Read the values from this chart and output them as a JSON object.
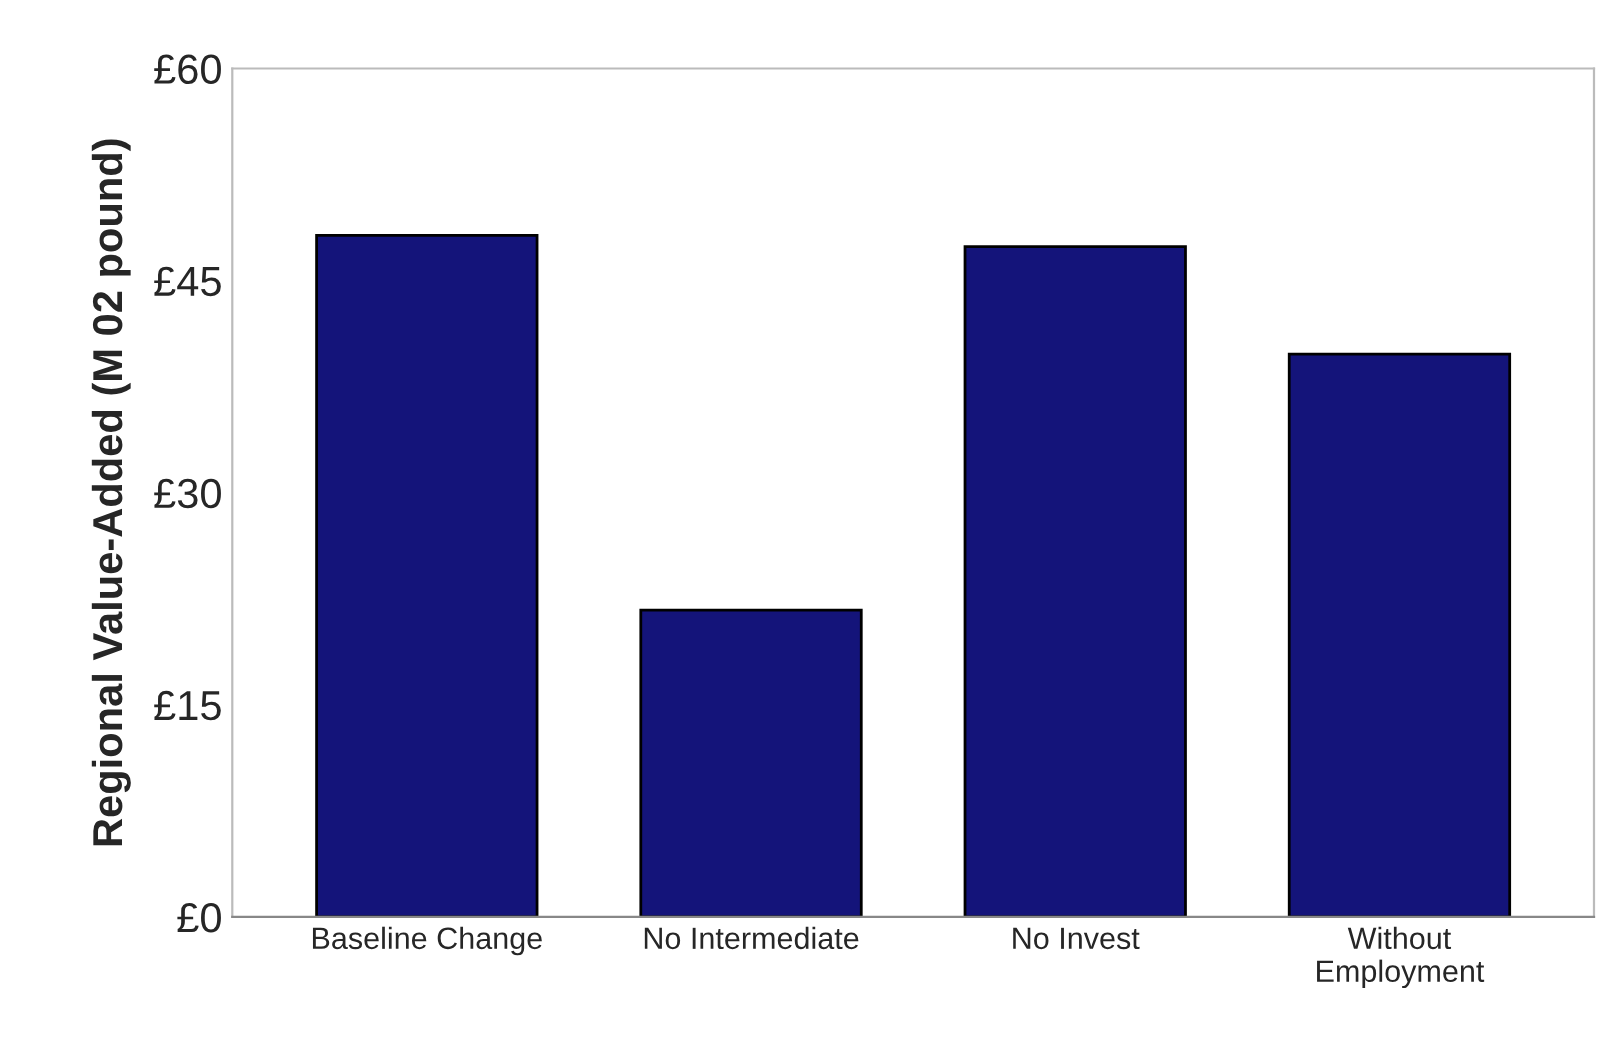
{
  "chart_data": {
    "type": "bar",
    "ylabel": "Regional Value-Added (M 02 pound)",
    "categories": [
      "Baseline Change",
      "No Intermediate",
      "No Invest",
      "Without\nEmployment"
    ],
    "values": [
      48.2,
      21.7,
      47.4,
      39.8
    ],
    "color": "#14147a",
    "ylim": [
      0,
      60
    ],
    "yticks": [
      {
        "value": 0,
        "label": "£0"
      },
      {
        "value": 15,
        "label": "£15"
      },
      {
        "value": 30,
        "label": "£30"
      },
      {
        "value": 45,
        "label": "£45"
      },
      {
        "value": 60,
        "label": "£60"
      }
    ],
    "grid": false
  }
}
